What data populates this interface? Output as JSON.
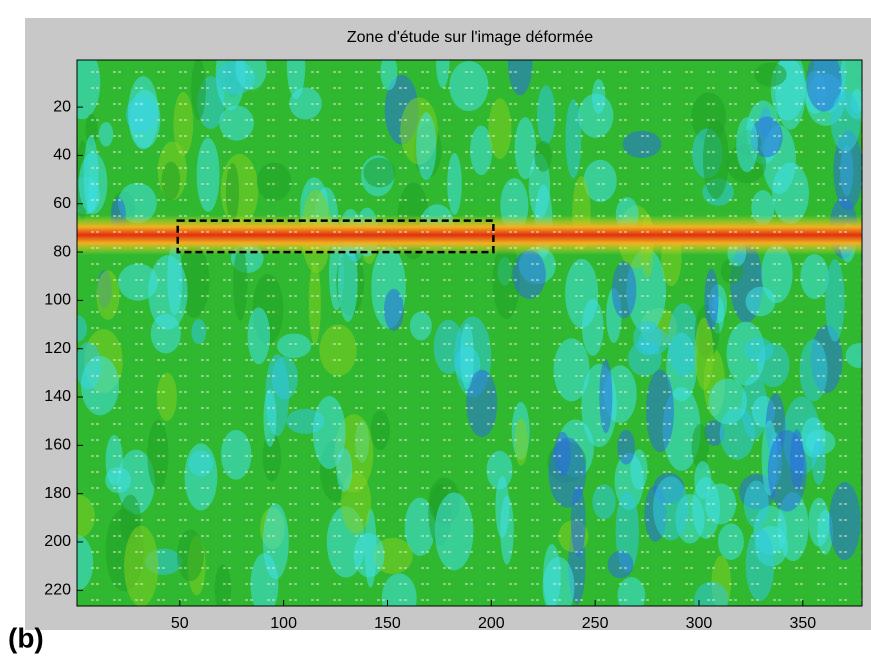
{
  "chart_data": {
    "type": "image",
    "title": "Zone d'étude sur l'image déformée",
    "xlim": [
      0.5,
      378.5
    ],
    "xticks": [
      50,
      100,
      150,
      200,
      250,
      300,
      350
    ],
    "ylim": [
      0.5,
      226.5
    ],
    "yticks": [
      20,
      40,
      60,
      80,
      100,
      120,
      140,
      160,
      180,
      200,
      220
    ],
    "y_reversed": true,
    "zone": {
      "x": [
        49,
        201
      ],
      "y": [
        67,
        80
      ],
      "color": "#000000"
    },
    "panel_label": "(b)"
  }
}
